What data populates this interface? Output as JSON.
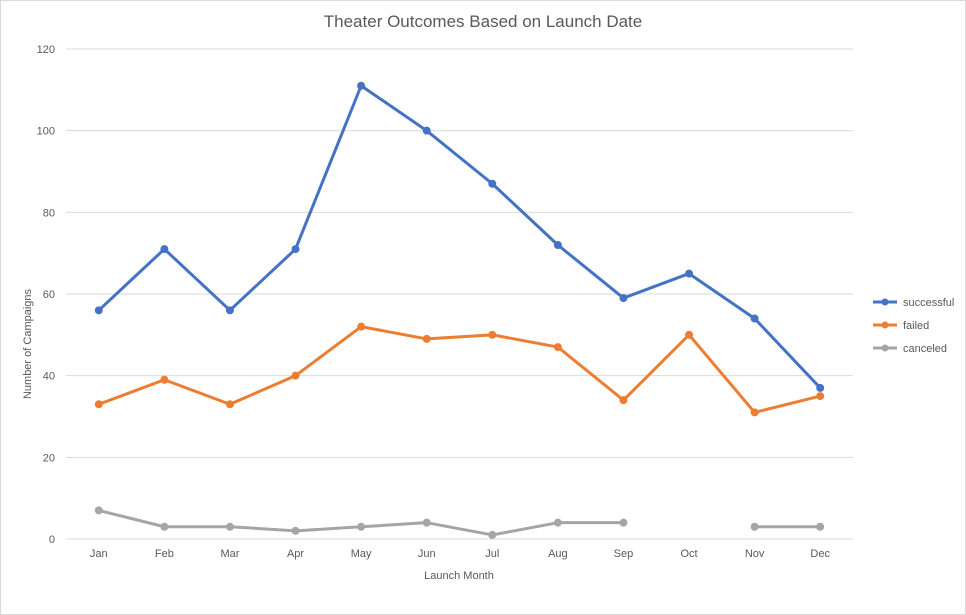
{
  "chart_data": {
    "type": "line",
    "title": "Theater Outcomes Based on Launch Date",
    "xlabel": "Launch Month",
    "ylabel": "Number of Campaigns",
    "categories": [
      "Jan",
      "Feb",
      "Mar",
      "Apr",
      "May",
      "Jun",
      "Jul",
      "Aug",
      "Sep",
      "Oct",
      "Nov",
      "Dec"
    ],
    "ylim": [
      0,
      120
    ],
    "yticks": [
      "0",
      "20",
      "40",
      "60",
      "80",
      "100",
      "120"
    ],
    "grid": true,
    "legend_position": "right",
    "series": [
      {
        "name": "successful",
        "color": "#4472c4",
        "values": [
          56,
          71,
          56,
          71,
          111,
          100,
          87,
          72,
          59,
          65,
          54,
          37
        ]
      },
      {
        "name": "failed",
        "color": "#ed7d31",
        "values": [
          33,
          39,
          33,
          40,
          52,
          49,
          50,
          47,
          34,
          50,
          31,
          35
        ]
      },
      {
        "name": "canceled",
        "color": "#a5a5a5",
        "values": [
          7,
          3,
          3,
          2,
          3,
          4,
          1,
          4,
          4,
          null,
          3,
          3
        ]
      }
    ]
  }
}
